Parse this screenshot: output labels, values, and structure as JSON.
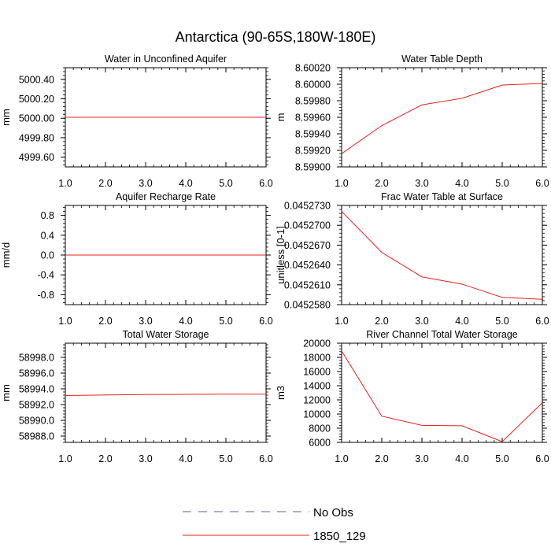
{
  "figure": {
    "title": "Antarctica (90-65S,180W-180E)",
    "legend": [
      {
        "label": "No Obs",
        "color": "#5a5ab4",
        "dash": true
      },
      {
        "label": "1850_129",
        "color": "#e8201c",
        "dash": false
      }
    ]
  },
  "chart_data": [
    {
      "type": "line",
      "title": "Water in Unconfined Aquifer",
      "ylabel": "mm",
      "x": [
        1,
        2,
        3,
        4,
        5,
        6
      ],
      "xlim": [
        1,
        6
      ],
      "xticks": [
        "1.0",
        "2.0",
        "3.0",
        "4.0",
        "5.0",
        "6.0"
      ],
      "ylim": [
        4999.5,
        5000.52
      ],
      "yticks": [
        4999.6,
        4999.8,
        5000.0,
        5000.2,
        5000.4
      ],
      "yticklabels": [
        "4999.60",
        "4999.80",
        "5000.00",
        "5000.20",
        "5000.40"
      ],
      "yminor_step": 0.04,
      "series": [
        {
          "name": "1850_129",
          "values": [
            5000.01,
            5000.01,
            5000.01,
            5000.01,
            5000.01,
            5000.01
          ]
        }
      ]
    },
    {
      "type": "line",
      "title": "Water Table Depth",
      "ylabel": "m",
      "x": [
        1,
        2,
        3,
        4,
        5,
        6
      ],
      "xlim": [
        1,
        6
      ],
      "xticks": [
        "1.0",
        "2.0",
        "3.0",
        "4.0",
        "5.0",
        "6.0"
      ],
      "ylim": [
        8.599,
        8.6002
      ],
      "yticks": [
        8.599,
        8.5992,
        8.5994,
        8.5996,
        8.5998,
        8.6,
        8.6002
      ],
      "yticklabels": [
        "8.59900",
        "8.59920",
        "8.59940",
        "8.59960",
        "8.59980",
        "8.60000",
        "8.60020"
      ],
      "yminor_step": 4e-05,
      "series": [
        {
          "name": "1850_129",
          "values": [
            8.59916,
            8.5995,
            8.59975,
            8.59983,
            8.59999,
            8.60001
          ]
        }
      ]
    },
    {
      "type": "line",
      "title": "Aquifer Recharge Rate",
      "ylabel": "mm/d",
      "x": [
        1,
        2,
        3,
        4,
        5,
        6
      ],
      "xlim": [
        1,
        6
      ],
      "xticks": [
        "1.0",
        "2.0",
        "3.0",
        "4.0",
        "5.0",
        "6.0"
      ],
      "ylim": [
        -1.0,
        1.0
      ],
      "yticks": [
        -0.8,
        -0.4,
        0.0,
        0.4,
        0.8
      ],
      "yticklabels": [
        "-0.8",
        "-0.4",
        "0.0",
        "0.4",
        "0.8"
      ],
      "yminor_step": 0.08,
      "series": [
        {
          "name": "1850_129",
          "values": [
            0,
            0,
            0,
            0,
            0,
            0
          ]
        }
      ]
    },
    {
      "type": "line",
      "title": "Frac Water Table at Surface",
      "ylabel": "unitless [0-1]",
      "x": [
        1,
        2,
        3,
        4,
        5,
        6
      ],
      "xlim": [
        1,
        6
      ],
      "xticks": [
        "1.0",
        "2.0",
        "3.0",
        "4.0",
        "5.0",
        "6.0"
      ],
      "ylim": [
        0.045258,
        0.045273
      ],
      "yticks": [
        0.045258,
        0.045261,
        0.045264,
        0.045267,
        0.04527,
        0.045273
      ],
      "yticklabels": [
        "0.0452580",
        "0.0452610",
        "0.0452640",
        "0.0452670",
        "0.0452700",
        "0.0452730"
      ],
      "yminor_step": 6e-07,
      "series": [
        {
          "name": "1850_129",
          "values": [
            0.0452721,
            0.0452659,
            0.0452622,
            0.0452611,
            0.0452591,
            0.0452588
          ]
        }
      ]
    },
    {
      "type": "line",
      "title": "Total Water Storage",
      "ylabel": "mm",
      "x": [
        1,
        2,
        3,
        4,
        5,
        6
      ],
      "xlim": [
        1,
        6
      ],
      "xticks": [
        "1.0",
        "2.0",
        "3.0",
        "4.0",
        "5.0",
        "6.0"
      ],
      "ylim": [
        58987.2,
        58999.8
      ],
      "yticks": [
        58988,
        58990,
        58992,
        58994,
        58996,
        58998
      ],
      "yticklabels": [
        "58988.0",
        "58990.0",
        "58992.0",
        "58994.0",
        "58996.0",
        "58998.0"
      ],
      "yminor_step": 0.4,
      "series": [
        {
          "name": "1850_129",
          "values": [
            58993.15,
            58993.22,
            58993.27,
            58993.3,
            58993.32,
            58993.33
          ]
        }
      ]
    },
    {
      "type": "line",
      "title": "River Channel Total Water Storage",
      "ylabel": "m3",
      "x": [
        1,
        2,
        3,
        4,
        5,
        6
      ],
      "xlim": [
        1,
        6
      ],
      "xticks": [
        "1.0",
        "2.0",
        "3.0",
        "4.0",
        "5.0",
        "6.0"
      ],
      "ylim": [
        6000,
        20000
      ],
      "yticks": [
        6000,
        8000,
        10000,
        12000,
        14000,
        16000,
        18000,
        20000
      ],
      "yticklabels": [
        "6000",
        "8000",
        "10000",
        "12000",
        "14000",
        "16000",
        "18000",
        "20000"
      ],
      "yminor_step": 400,
      "series": [
        {
          "name": "1850_129",
          "values": [
            18900,
            9700,
            8400,
            8350,
            6100,
            11600
          ]
        }
      ]
    }
  ]
}
